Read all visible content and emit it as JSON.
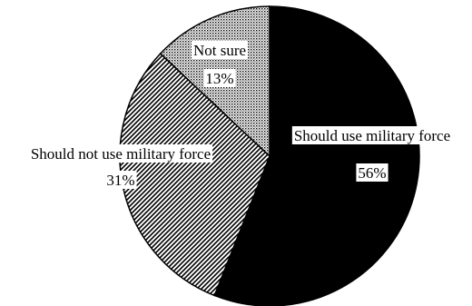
{
  "colors": {
    "background": "#ffffff",
    "solid_slice": "#000000",
    "outline": "#000000"
  },
  "chart_data": {
    "type": "pie",
    "title": "",
    "slices": [
      {
        "label": "Should use military force",
        "value": 56,
        "value_label": "56%",
        "fill": "solid-black"
      },
      {
        "label": "Should not use military force",
        "value": 31,
        "value_label": "31%",
        "fill": "diagonal-hatch"
      },
      {
        "label": "Not sure",
        "value": 13,
        "value_label": "13%",
        "fill": "crosshatch-dots"
      }
    ],
    "legend": "none",
    "labels_on_chart": true
  }
}
